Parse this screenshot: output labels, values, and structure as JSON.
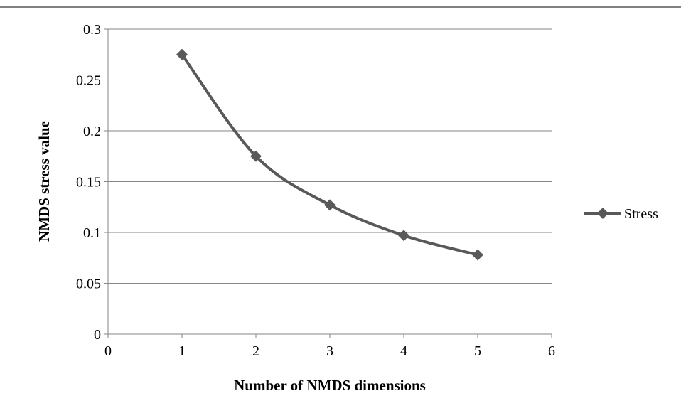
{
  "chart_data": {
    "type": "line",
    "title": "",
    "xlabel": "Number of NMDS dimensions",
    "ylabel": "NMDS stress value",
    "xlim": [
      0,
      6
    ],
    "ylim": [
      0,
      0.3
    ],
    "x_ticks": [
      "0",
      "1",
      "2",
      "3",
      "4",
      "5",
      "6"
    ],
    "y_ticks": [
      "0",
      "0.05",
      "0.1",
      "0.15",
      "0.2",
      "0.25",
      "0.3"
    ],
    "grid": "horizontal",
    "legend_position": "right",
    "line_style": "smoothed",
    "marker": "diamond",
    "series": [
      {
        "name": "Stress",
        "color": "#595959",
        "x": [
          1,
          2,
          3,
          4,
          5
        ],
        "values": [
          0.275,
          0.175,
          0.127,
          0.097,
          0.078
        ]
      }
    ]
  }
}
